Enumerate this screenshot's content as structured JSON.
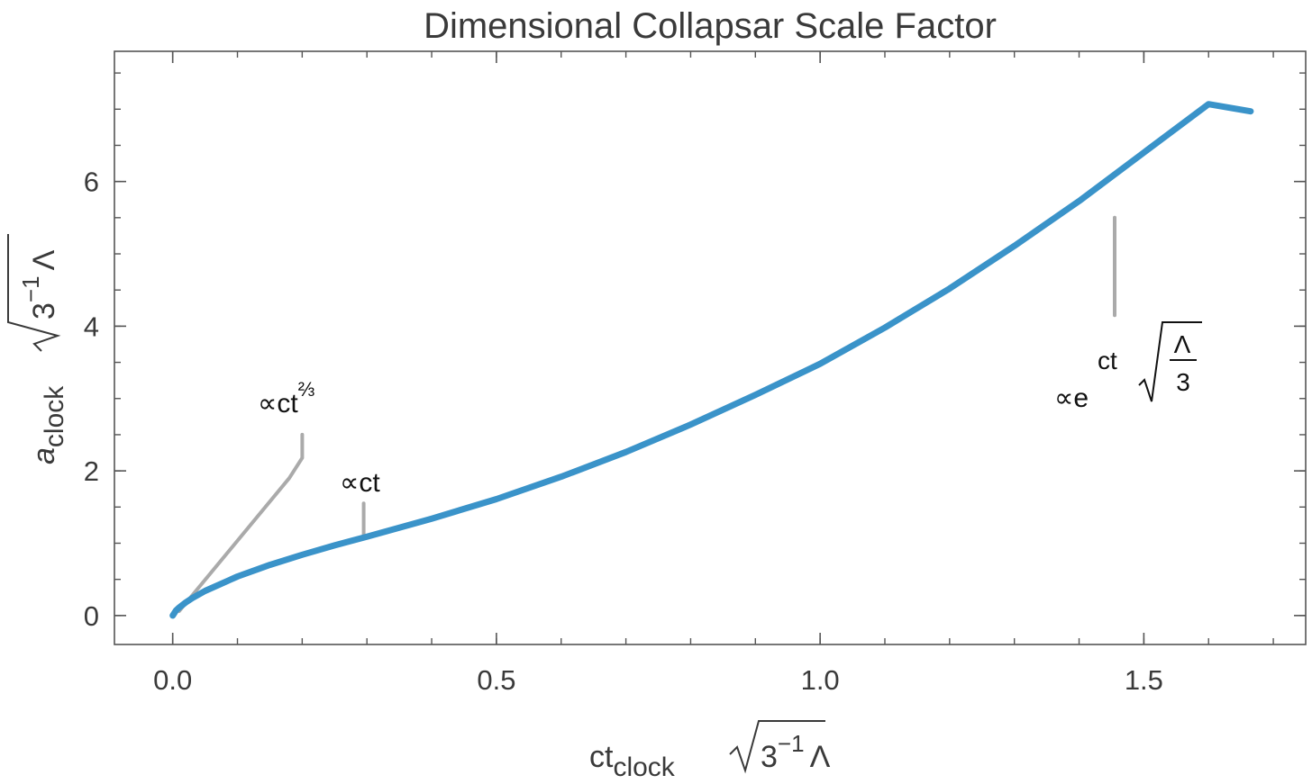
{
  "chart_data": {
    "type": "line",
    "title": "Dimensional Collapsar Scale Factor",
    "xlabel": {
      "main": "ct",
      "sub": "clock",
      "radicand_base": "3",
      "radicand_exp": "−1",
      "radicand_tail": "Λ"
    },
    "ylabel": {
      "main": "a",
      "sub": "clock",
      "radicand_base": "3",
      "radicand_exp": "−1",
      "radicand_tail": "Λ"
    },
    "xlim": [
      -0.09,
      1.75
    ],
    "ylim": [
      -0.4,
      7.8
    ],
    "xticks": [
      {
        "value": 0.0,
        "label": "0.0"
      },
      {
        "value": 0.5,
        "label": "0.5"
      },
      {
        "value": 1.0,
        "label": "1.0"
      },
      {
        "value": 1.5,
        "label": "1.5"
      }
    ],
    "yticks": [
      {
        "value": 0,
        "label": "0"
      },
      {
        "value": 2,
        "label": "2"
      },
      {
        "value": 4,
        "label": "4"
      },
      {
        "value": 6,
        "label": "6"
      }
    ],
    "x_minor_step": 0.1,
    "y_minor_step": 0.5,
    "series": [
      {
        "color": "#3a93c9",
        "x": [
          0.0,
          0.005,
          0.01,
          0.02,
          0.03,
          0.05,
          0.08,
          0.1,
          0.15,
          0.2,
          0.25,
          0.3,
          0.4,
          0.5,
          0.6,
          0.7,
          0.8,
          0.9,
          1.0,
          1.1,
          1.2,
          1.3,
          1.4,
          1.5,
          1.6,
          1.665
        ],
        "y": [
          0.0,
          0.07,
          0.11,
          0.18,
          0.24,
          0.34,
          0.46,
          0.54,
          0.7,
          0.84,
          0.97,
          1.09,
          1.34,
          1.61,
          1.92,
          2.26,
          2.64,
          3.05,
          3.48,
          3.98,
          4.52,
          5.11,
          5.73,
          6.4,
          7.07,
          6.97
        ]
      }
    ],
    "annotations": [
      {
        "name": "ct-two-thirds",
        "label_prefix": "∝ct",
        "label_sup": "⅔",
        "leader_color": "#aaaaaa",
        "leader_data": [
          [
            0.2,
            2.5
          ],
          [
            0.2,
            2.18
          ],
          [
            0.18,
            1.9
          ],
          [
            0.01,
            0.06
          ]
        ]
      },
      {
        "name": "ct-linear",
        "label_prefix": "∝ct",
        "label_sup": "",
        "leader_color": "#aaaaaa",
        "leader_data": [
          [
            0.295,
            1.55
          ],
          [
            0.295,
            1.07
          ]
        ]
      },
      {
        "name": "exponential",
        "label_prefix": "∝e",
        "label_sup": "ct",
        "frac_num": "Λ",
        "frac_den": "3",
        "leader_color": "#aaaaaa",
        "leader_data": [
          [
            1.455,
            5.5
          ],
          [
            1.455,
            4.15
          ]
        ]
      }
    ],
    "grid": false,
    "legend": "none"
  }
}
